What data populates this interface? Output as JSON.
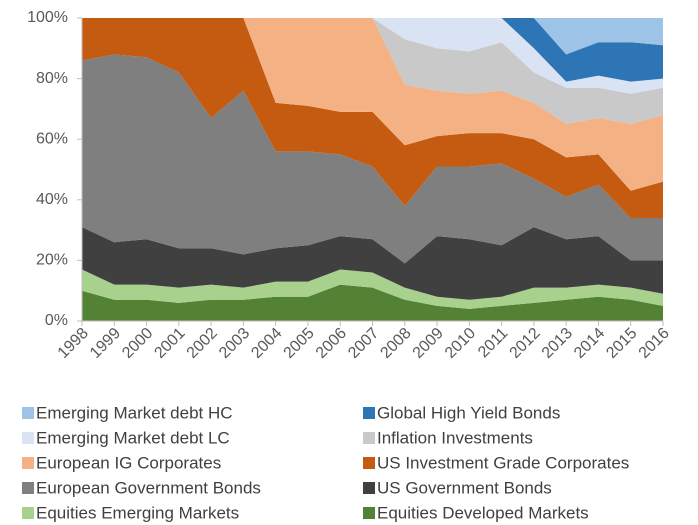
{
  "chart_data": {
    "type": "stacked_area",
    "x": [
      1998,
      1999,
      2000,
      2001,
      2002,
      2003,
      2004,
      2005,
      2006,
      2007,
      2008,
      2009,
      2010,
      2011,
      2012,
      2013,
      2014,
      2015,
      2016
    ],
    "xlim": [
      1998,
      2016
    ],
    "xticks": [
      1998,
      1999,
      2000,
      2001,
      2002,
      2003,
      2004,
      2005,
      2006,
      2007,
      2008,
      2009,
      2010,
      2011,
      2012,
      2013,
      2014,
      2015,
      2016
    ],
    "ylim": [
      0,
      100
    ],
    "yticks": [
      {
        "value": 0,
        "label": "0%"
      },
      {
        "value": 20,
        "label": "20%"
      },
      {
        "value": 40,
        "label": "40%"
      },
      {
        "value": 60,
        "label": "60%"
      },
      {
        "value": 80,
        "label": "80%"
      },
      {
        "value": 100,
        "label": "100%"
      }
    ],
    "series": [
      {
        "name": "Equities Developed Markets",
        "color": "#548235",
        "values": [
          10,
          7,
          7,
          6,
          7,
          7,
          8,
          8,
          12,
          11,
          7,
          5,
          4,
          5,
          6,
          7,
          8,
          7,
          5
        ]
      },
      {
        "name": "Equities Emerging Markets",
        "color": "#a9d18e",
        "values": [
          7,
          5,
          5,
          5,
          5,
          4,
          5,
          5,
          5,
          5,
          4,
          3,
          3,
          3,
          5,
          4,
          4,
          4,
          4
        ]
      },
      {
        "name": "US Government Bonds",
        "color": "#404040",
        "values": [
          14,
          14,
          15,
          13,
          12,
          11,
          11,
          12,
          11,
          11,
          8,
          20,
          20,
          17,
          20,
          16,
          16,
          9,
          11
        ]
      },
      {
        "name": "European Government Bonds",
        "color": "#7f7f7f",
        "values": [
          55,
          62,
          60,
          58,
          43,
          54,
          32,
          31,
          27,
          24,
          19,
          23,
          24,
          27,
          16,
          14,
          17,
          14,
          14
        ]
      },
      {
        "name": "US Investment Grade Corporates",
        "color": "#c55a11",
        "values": [
          14,
          12,
          13,
          18,
          33,
          24,
          16,
          15,
          14,
          18,
          20,
          10,
          11,
          10,
          13,
          13,
          10,
          9,
          12
        ]
      },
      {
        "name": "European IG Corporates",
        "color": "#f4b183",
        "values": [
          0,
          0,
          0,
          0,
          0,
          0,
          28,
          29,
          31,
          31,
          20,
          15,
          13,
          14,
          12,
          11,
          12,
          22,
          22
        ]
      },
      {
        "name": "Inflation Investments",
        "color": "#c9c9c9",
        "values": [
          0,
          0,
          0,
          0,
          0,
          0,
          0,
          0,
          0,
          0,
          15,
          14,
          14,
          16,
          10,
          12,
          10,
          10,
          9
        ]
      },
      {
        "name": "Emerging Market debt LC",
        "color": "#dae3f3",
        "values": [
          0,
          0,
          0,
          0,
          0,
          0,
          0,
          0,
          0,
          0,
          7,
          10,
          11,
          8,
          8,
          2,
          4,
          4,
          3
        ]
      },
      {
        "name": "Global High Yield Bonds",
        "color": "#2e75b6",
        "values": [
          0,
          0,
          0,
          0,
          0,
          0,
          0,
          0,
          0,
          0,
          0,
          0,
          0,
          0,
          10,
          9,
          11,
          13,
          11
        ]
      },
      {
        "name": "Emerging Market debt HC",
        "color": "#9dc3e6",
        "values": [
          0,
          0,
          0,
          0,
          0,
          0,
          0,
          0,
          0,
          0,
          0,
          0,
          0,
          0,
          0,
          12,
          8,
          8,
          9
        ]
      }
    ]
  }
}
